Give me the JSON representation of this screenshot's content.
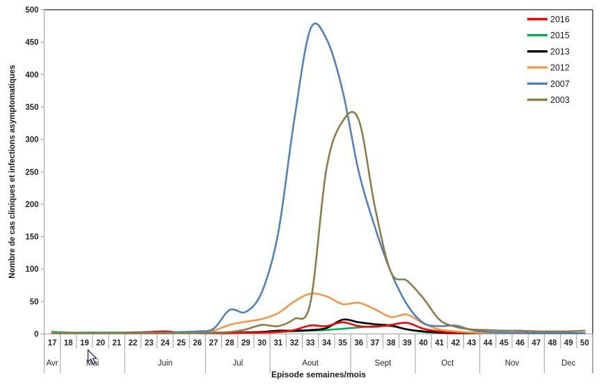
{
  "chart_data": {
    "type": "line",
    "title": "",
    "xlabel": "Episode semaines/mois",
    "ylabel": "Nombre de cas cliniques et infections asymptomatiques",
    "x_weeks": [
      17,
      18,
      19,
      20,
      21,
      22,
      23,
      24,
      25,
      26,
      27,
      28,
      29,
      30,
      31,
      32,
      33,
      34,
      35,
      36,
      37,
      38,
      39,
      40,
      41,
      42,
      43,
      44,
      45,
      46,
      47,
      48,
      49,
      50
    ],
    "months": [
      {
        "label": "Avr",
        "weeks": 1
      },
      {
        "label": "Mai",
        "weeks": 4
      },
      {
        "label": "Juin",
        "weeks": 5
      },
      {
        "label": "Jul",
        "weeks": 4
      },
      {
        "label": "Aout",
        "weeks": 5
      },
      {
        "label": "Sept",
        "weeks": 4
      },
      {
        "label": "Oct",
        "weeks": 4
      },
      {
        "label": "Nov",
        "weeks": 4
      },
      {
        "label": "Dec",
        "weeks": 3
      }
    ],
    "y_axis": {
      "min": 0,
      "max": 500,
      "step": 50
    },
    "grid": false,
    "smooth_lines": true,
    "legend_position": "inside-top-right",
    "draw_order": [
      1,
      2,
      0,
      3,
      4,
      5
    ],
    "series": [
      {
        "name": "2016",
        "color": "#FF0000",
        "values": [
          1,
          1,
          1,
          1,
          1,
          2,
          3,
          4,
          2,
          1,
          1,
          1,
          2,
          2,
          3,
          6,
          13,
          12,
          18,
          12,
          11,
          14,
          17,
          8,
          4,
          2,
          2,
          2,
          1,
          1,
          1,
          0,
          0,
          0
        ]
      },
      {
        "name": "2015",
        "color": "#00B050",
        "values": [
          3,
          2,
          2,
          2,
          2,
          2,
          2,
          2,
          2,
          2,
          2,
          2,
          3,
          3,
          3,
          4,
          5,
          6,
          8,
          10,
          12,
          12,
          7,
          3,
          2,
          1,
          1,
          1,
          0,
          0,
          0,
          0,
          0,
          0
        ]
      },
      {
        "name": "2013",
        "color": "#000000",
        "values": [
          1,
          1,
          1,
          1,
          1,
          1,
          1,
          1,
          2,
          3,
          2,
          2,
          2,
          3,
          5,
          5,
          6,
          9,
          22,
          18,
          15,
          13,
          7,
          4,
          2,
          1,
          0,
          0,
          0,
          0,
          0,
          0,
          0,
          0
        ]
      },
      {
        "name": "2012",
        "color": "#F79646",
        "values": [
          1,
          1,
          1,
          1,
          1,
          1,
          1,
          1,
          1,
          2,
          5,
          14,
          19,
          23,
          32,
          50,
          62,
          58,
          46,
          48,
          38,
          26,
          30,
          16,
          7,
          4,
          2,
          1,
          1,
          1,
          1,
          1,
          1,
          1
        ]
      },
      {
        "name": "2007",
        "color": "#4F81BD",
        "values": [
          1,
          1,
          1,
          1,
          1,
          1,
          2,
          2,
          3,
          4,
          8,
          37,
          34,
          65,
          155,
          330,
          470,
          455,
          375,
          250,
          165,
          95,
          45,
          17,
          12,
          13,
          6,
          3,
          2,
          2,
          1,
          1,
          1,
          1
        ]
      },
      {
        "name": "2003",
        "color": "#8A7D45",
        "values": [
          1,
          1,
          1,
          1,
          1,
          1,
          1,
          1,
          1,
          1,
          2,
          3,
          7,
          14,
          12,
          23,
          48,
          255,
          328,
          330,
          196,
          95,
          82,
          55,
          22,
          11,
          7,
          6,
          5,
          5,
          4,
          4,
          4,
          5
        ]
      }
    ]
  },
  "cursor": {
    "visible": true,
    "near_label": "Mai"
  },
  "axis_colors": {
    "major": "#262626",
    "minor": "#A6A6A6",
    "text": "#262626"
  }
}
